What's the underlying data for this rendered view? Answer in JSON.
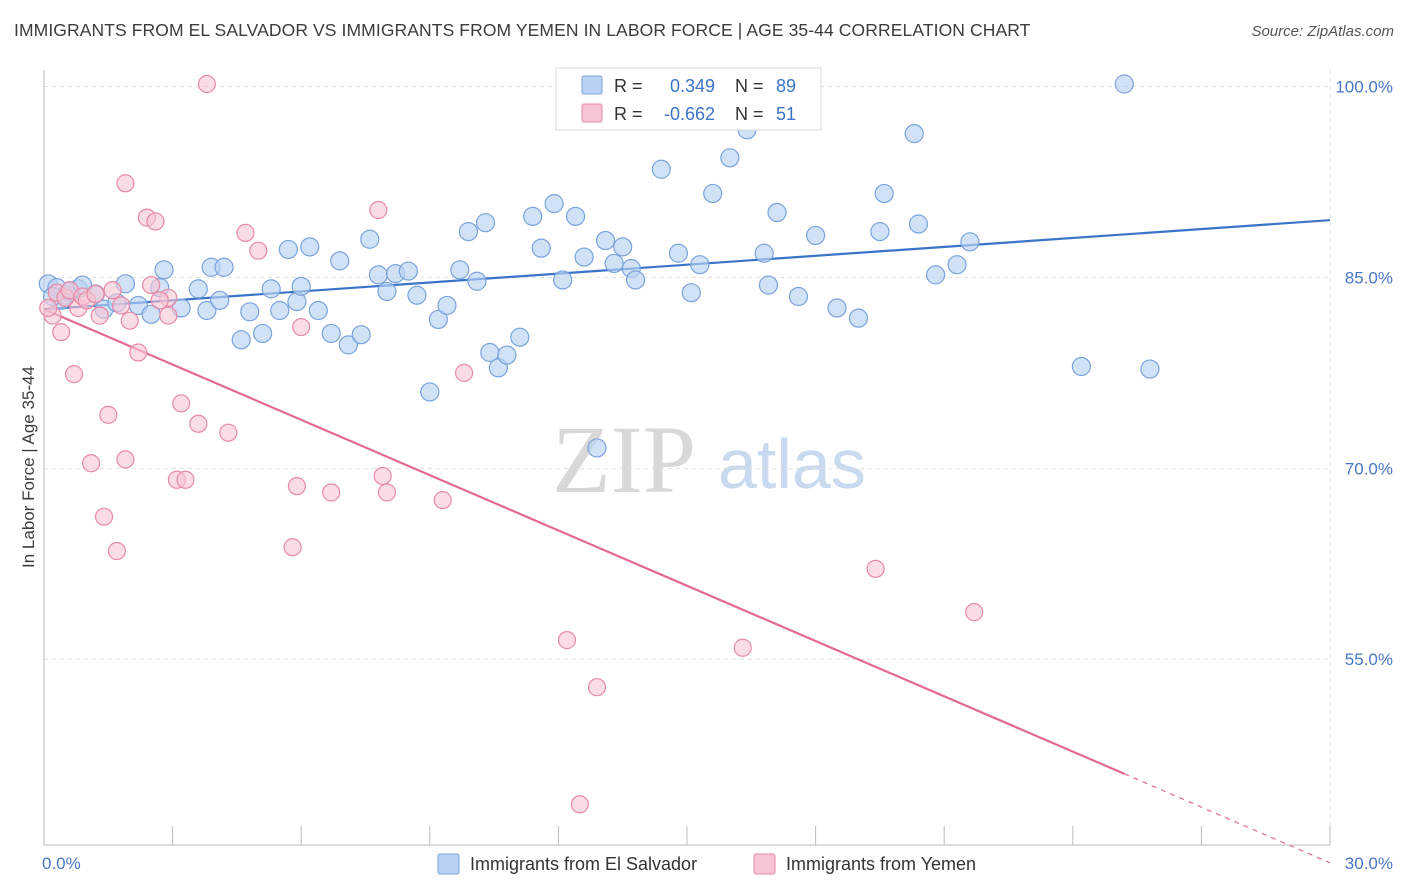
{
  "title": "IMMIGRANTS FROM EL SALVADOR VS IMMIGRANTS FROM YEMEN IN LABOR FORCE | AGE 35-44 CORRELATION CHART",
  "source": "Source: ZipAtlas.com",
  "watermark": {
    "zip": "ZIP",
    "atlas": "atlas"
  },
  "legend_box": {
    "rows": [
      {
        "r_label": "R =",
        "r_value": "0.349",
        "n_label": "N =",
        "n_value": "89"
      },
      {
        "r_label": "R =",
        "r_value": "-0.662",
        "n_label": "N =",
        "n_value": "51"
      }
    ]
  },
  "colors": {
    "blue_fill": "#b9d2f3",
    "blue_stroke": "#7aa3dc",
    "blue_line": "#3a74c8",
    "pink_fill": "#f7c5d3",
    "pink_stroke": "#e88aa6",
    "pink_line": "#e06a94",
    "label_blue": "#4a77c4",
    "grid": "#dddddd"
  },
  "chart_data": {
    "type": "scatter",
    "title": "IMMIGRANTS FROM EL SALVADOR VS IMMIGRANTS FROM YEMEN IN LABOR FORCE | AGE 35-44 CORRELATION CHART",
    "xlabel": "",
    "ylabel": "In Labor Force | Age 35-44",
    "xlim": [
      0,
      30
    ],
    "ylim": [
      40.4,
      101.3
    ],
    "x_tick_labels": [
      {
        "value": 0,
        "label": "0.0%"
      },
      {
        "value": 30,
        "label": "30.0%"
      }
    ],
    "y_tick_labels": [
      {
        "value": 100,
        "label": "100.0%"
      },
      {
        "value": 85,
        "label": "85.0%"
      },
      {
        "value": 70,
        "label": "70.0%"
      },
      {
        "value": 55,
        "label": "55.0%"
      }
    ],
    "grid": true,
    "legend_position": "top-center",
    "series": [
      {
        "name": "Immigrants from El Salvador",
        "color": "#b9d2f3",
        "r": 0.349,
        "n": 89,
        "trend": {
          "x": [
            0,
            30
          ],
          "y": [
            82.5,
            89.5
          ]
        },
        "points": [
          [
            0.1,
            84.5
          ],
          [
            0.3,
            84.2
          ],
          [
            0.5,
            83.6
          ],
          [
            0.8,
            84.1
          ],
          [
            1.2,
            83.7
          ],
          [
            0.6,
            83.9
          ],
          [
            0.9,
            84.4
          ],
          [
            0.4,
            83.2
          ],
          [
            1.4,
            82.5
          ],
          [
            1.7,
            83.0
          ],
          [
            1.9,
            84.5
          ],
          [
            2.2,
            82.8
          ],
          [
            2.5,
            82.1
          ],
          [
            2.7,
            84.2
          ],
          [
            2.8,
            85.6
          ],
          [
            3.2,
            82.6
          ],
          [
            3.6,
            84.1
          ],
          [
            3.8,
            82.4
          ],
          [
            3.9,
            85.8
          ],
          [
            4.1,
            83.2
          ],
          [
            4.2,
            85.8
          ],
          [
            4.6,
            80.1
          ],
          [
            4.8,
            82.3
          ],
          [
            5.1,
            80.6
          ],
          [
            5.3,
            84.1
          ],
          [
            5.5,
            82.4
          ],
          [
            5.7,
            87.2
          ],
          [
            5.9,
            83.1
          ],
          [
            6.0,
            84.3
          ],
          [
            6.2,
            87.4
          ],
          [
            6.4,
            82.4
          ],
          [
            6.7,
            80.6
          ],
          [
            6.9,
            86.3
          ],
          [
            7.1,
            79.7
          ],
          [
            7.4,
            80.5
          ],
          [
            7.6,
            88.0
          ],
          [
            7.8,
            85.2
          ],
          [
            8.0,
            83.9
          ],
          [
            8.2,
            85.3
          ],
          [
            8.5,
            85.5
          ],
          [
            8.7,
            83.6
          ],
          [
            9.0,
            76.0
          ],
          [
            9.2,
            81.7
          ],
          [
            9.4,
            82.8
          ],
          [
            9.7,
            85.6
          ],
          [
            9.9,
            88.6
          ],
          [
            10.1,
            84.7
          ],
          [
            10.3,
            89.3
          ],
          [
            10.4,
            79.1
          ],
          [
            10.6,
            77.9
          ],
          [
            10.8,
            78.9
          ],
          [
            11.1,
            80.3
          ],
          [
            11.4,
            89.8
          ],
          [
            11.6,
            87.3
          ],
          [
            11.9,
            90.8
          ],
          [
            12.1,
            84.8
          ],
          [
            12.4,
            89.8
          ],
          [
            12.6,
            86.6
          ],
          [
            12.9,
            71.6
          ],
          [
            13.1,
            87.9
          ],
          [
            13.3,
            86.1
          ],
          [
            13.5,
            87.4
          ],
          [
            13.7,
            85.7
          ],
          [
            13.8,
            84.8
          ],
          [
            14.4,
            93.5
          ],
          [
            14.8,
            86.9
          ],
          [
            15.1,
            83.8
          ],
          [
            15.3,
            86.0
          ],
          [
            15.6,
            91.6
          ],
          [
            16.0,
            94.4
          ],
          [
            16.4,
            96.6
          ],
          [
            16.8,
            86.9
          ],
          [
            16.9,
            84.4
          ],
          [
            17.1,
            90.1
          ],
          [
            17.6,
            83.5
          ],
          [
            18.0,
            88.3
          ],
          [
            18.5,
            82.6
          ],
          [
            19.0,
            81.8
          ],
          [
            19.5,
            88.6
          ],
          [
            19.6,
            91.6
          ],
          [
            20.3,
            96.3
          ],
          [
            20.4,
            89.2
          ],
          [
            20.8,
            85.2
          ],
          [
            21.3,
            86.0
          ],
          [
            21.6,
            87.8
          ],
          [
            24.2,
            78.0
          ],
          [
            25.2,
            100.2
          ],
          [
            25.8,
            77.8
          ],
          [
            0.2,
            83.5
          ]
        ]
      },
      {
        "name": "Immigrants from Yemen",
        "color": "#f7c5d3",
        "r": -0.662,
        "n": 51,
        "trend": {
          "x": [
            0,
            25.2
          ],
          "y": [
            82.5,
            46.0
          ]
        },
        "trend_dashed": {
          "x": [
            25.2,
            30
          ],
          "y": [
            46.0,
            39.0
          ]
        },
        "points": [
          [
            0.2,
            82.0
          ],
          [
            0.3,
            83.8
          ],
          [
            0.4,
            80.7
          ],
          [
            0.5,
            83.4
          ],
          [
            0.6,
            84.0
          ],
          [
            0.7,
            77.4
          ],
          [
            0.8,
            82.6
          ],
          [
            0.9,
            83.5
          ],
          [
            1.0,
            83.2
          ],
          [
            1.1,
            70.4
          ],
          [
            1.2,
            83.7
          ],
          [
            1.3,
            82.0
          ],
          [
            1.4,
            66.2
          ],
          [
            1.5,
            74.2
          ],
          [
            1.6,
            84.0
          ],
          [
            1.7,
            63.5
          ],
          [
            1.8,
            82.8
          ],
          [
            1.9,
            70.7
          ],
          [
            1.9,
            92.4
          ],
          [
            2.0,
            81.6
          ],
          [
            2.2,
            79.1
          ],
          [
            2.4,
            89.7
          ],
          [
            2.5,
            84.4
          ],
          [
            2.6,
            89.4
          ],
          [
            2.9,
            82.0
          ],
          [
            2.9,
            83.4
          ],
          [
            3.1,
            69.1
          ],
          [
            3.2,
            75.1
          ],
          [
            3.3,
            69.1
          ],
          [
            3.6,
            73.5
          ],
          [
            3.8,
            100.2
          ],
          [
            4.3,
            72.8
          ],
          [
            4.7,
            88.5
          ],
          [
            5.0,
            87.1
          ],
          [
            5.8,
            63.8
          ],
          [
            5.9,
            68.6
          ],
          [
            6.0,
            81.1
          ],
          [
            6.7,
            68.1
          ],
          [
            7.8,
            90.3
          ],
          [
            7.9,
            69.4
          ],
          [
            8.0,
            68.1
          ],
          [
            9.3,
            67.5
          ],
          [
            9.8,
            77.5
          ],
          [
            12.2,
            56.5
          ],
          [
            12.5,
            43.6
          ],
          [
            12.9,
            52.8
          ],
          [
            16.3,
            55.9
          ],
          [
            19.4,
            62.1
          ],
          [
            21.7,
            58.7
          ],
          [
            0.1,
            82.6
          ],
          [
            2.7,
            83.2
          ]
        ]
      }
    ]
  },
  "bottom_legend": {
    "items": [
      {
        "label": "Immigrants from El Salvador"
      },
      {
        "label": "Immigrants from Yemen"
      }
    ]
  }
}
